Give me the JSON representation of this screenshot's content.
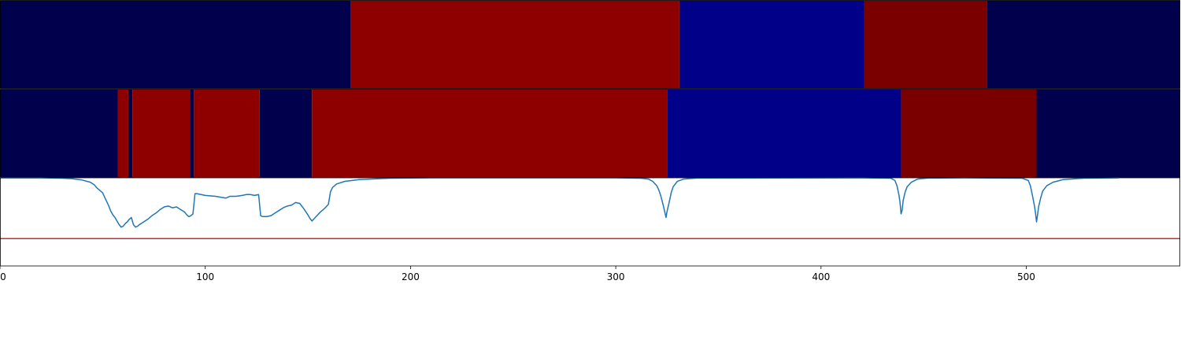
{
  "chart_data": [
    {
      "type": "heatmap",
      "xlim": [
        0,
        575
      ],
      "segments": [
        {
          "start": 0,
          "end": 171,
          "color": "#00004c"
        },
        {
          "start": 171,
          "end": 331,
          "color": "#8e0000"
        },
        {
          "start": 331,
          "end": 421,
          "color": "#000088"
        },
        {
          "start": 421,
          "end": 481,
          "color": "#7a0000"
        },
        {
          "start": 481,
          "end": 575,
          "color": "#00004c"
        }
      ]
    },
    {
      "type": "heatmap",
      "xlim": [
        0,
        575
      ],
      "segments": [
        {
          "start": 0,
          "end": 57.5,
          "color": "#00004c"
        },
        {
          "start": 57.5,
          "end": 62.5,
          "color": "#8e0000"
        },
        {
          "start": 62.5,
          "end": 64.5,
          "color": "#00004c"
        },
        {
          "start": 64.5,
          "end": 92.5,
          "color": "#8e0000"
        },
        {
          "start": 92.5,
          "end": 94.5,
          "color": "#00004c"
        },
        {
          "start": 94.5,
          "end": 126.5,
          "color": "#8e0000"
        },
        {
          "start": 126.5,
          "end": 152,
          "color": "#00004c"
        },
        {
          "start": 152,
          "end": 325,
          "color": "#8e0000"
        },
        {
          "start": 325,
          "end": 439,
          "color": "#000088"
        },
        {
          "start": 439,
          "end": 505,
          "color": "#7a0000"
        },
        {
          "start": 505,
          "end": 575,
          "color": "#00004c"
        }
      ]
    },
    {
      "type": "line",
      "xlim": [
        0,
        575
      ],
      "ylim": [
        0,
        1
      ],
      "xticks": [
        0,
        100,
        200,
        300,
        400,
        500
      ],
      "threshold": {
        "value": 0.31,
        "color": "#d62728"
      },
      "series": [
        {
          "color": "#1f77b4",
          "points": [
            [
              0,
              1.0
            ],
            [
              20,
              1.0
            ],
            [
              30,
              0.995
            ],
            [
              35,
              0.99
            ],
            [
              40,
              0.975
            ],
            [
              44,
              0.95
            ],
            [
              46,
              0.92
            ],
            [
              47,
              0.89
            ],
            [
              48,
              0.87
            ],
            [
              49,
              0.85
            ],
            [
              50,
              0.83
            ],
            [
              51,
              0.78
            ],
            [
              52,
              0.73
            ],
            [
              53,
              0.68
            ],
            [
              54,
              0.62
            ],
            [
              55,
              0.58
            ],
            [
              56,
              0.55
            ],
            [
              57,
              0.51
            ],
            [
              58,
              0.47
            ],
            [
              59,
              0.44
            ],
            [
              60,
              0.45
            ],
            [
              61,
              0.48
            ],
            [
              62,
              0.5
            ],
            [
              63,
              0.53
            ],
            [
              64,
              0.55
            ],
            [
              65,
              0.47
            ],
            [
              66,
              0.44
            ],
            [
              67,
              0.45
            ],
            [
              68,
              0.47
            ],
            [
              70,
              0.5
            ],
            [
              72,
              0.53
            ],
            [
              74,
              0.57
            ],
            [
              76,
              0.6
            ],
            [
              78,
              0.64
            ],
            [
              80,
              0.67
            ],
            [
              82,
              0.68
            ],
            [
              84,
              0.66
            ],
            [
              86,
              0.67
            ],
            [
              88,
              0.64
            ],
            [
              90,
              0.61
            ],
            [
              91,
              0.58
            ],
            [
              92,
              0.56
            ],
            [
              93,
              0.57
            ],
            [
              94,
              0.59
            ],
            [
              95,
              0.82
            ],
            [
              96,
              0.82
            ],
            [
              98,
              0.81
            ],
            [
              100,
              0.8
            ],
            [
              105,
              0.79
            ],
            [
              110,
              0.77
            ],
            [
              112,
              0.79
            ],
            [
              115,
              0.79
            ],
            [
              118,
              0.8
            ],
            [
              120,
              0.81
            ],
            [
              122,
              0.81
            ],
            [
              124,
              0.8
            ],
            [
              126,
              0.81
            ],
            [
              127,
              0.57
            ],
            [
              128,
              0.56
            ],
            [
              130,
              0.56
            ],
            [
              132,
              0.57
            ],
            [
              134,
              0.6
            ],
            [
              136,
              0.63
            ],
            [
              138,
              0.66
            ],
            [
              140,
              0.68
            ],
            [
              142,
              0.69
            ],
            [
              144,
              0.72
            ],
            [
              146,
              0.71
            ],
            [
              148,
              0.65
            ],
            [
              150,
              0.58
            ],
            [
              151,
              0.54
            ],
            [
              152,
              0.51
            ],
            [
              154,
              0.56
            ],
            [
              156,
              0.61
            ],
            [
              158,
              0.65
            ],
            [
              160,
              0.7
            ],
            [
              161,
              0.84
            ],
            [
              162,
              0.89
            ],
            [
              164,
              0.93
            ],
            [
              168,
              0.96
            ],
            [
              175,
              0.98
            ],
            [
              190,
              0.995
            ],
            [
              210,
              1.0
            ],
            [
              300,
              1.0
            ],
            [
              312,
              0.995
            ],
            [
              316,
              0.985
            ],
            [
              318,
              0.96
            ],
            [
              320,
              0.91
            ],
            [
              321,
              0.86
            ],
            [
              322,
              0.79
            ],
            [
              323,
              0.7
            ],
            [
              324,
              0.6
            ],
            [
              324.5,
              0.55
            ],
            [
              325,
              0.62
            ],
            [
              326,
              0.72
            ],
            [
              327,
              0.83
            ],
            [
              328,
              0.9
            ],
            [
              330,
              0.96
            ],
            [
              333,
              0.985
            ],
            [
              340,
              0.998
            ],
            [
              420,
              1.0
            ],
            [
              434,
              0.995
            ],
            [
              436,
              0.97
            ],
            [
              437,
              0.91
            ],
            [
              438,
              0.8
            ],
            [
              438.5,
              0.72
            ],
            [
              439,
              0.59
            ],
            [
              439.5,
              0.63
            ],
            [
              440,
              0.74
            ],
            [
              441,
              0.84
            ],
            [
              442,
              0.9
            ],
            [
              444,
              0.95
            ],
            [
              447,
              0.985
            ],
            [
              452,
              0.997
            ],
            [
              470,
              1.0
            ],
            [
              498,
              0.995
            ],
            [
              501,
              0.97
            ],
            [
              502,
              0.91
            ],
            [
              503,
              0.8
            ],
            [
              504,
              0.68
            ],
            [
              504.5,
              0.6
            ],
            [
              505,
              0.5
            ],
            [
              505.5,
              0.58
            ],
            [
              506,
              0.67
            ],
            [
              507,
              0.77
            ],
            [
              508,
              0.85
            ],
            [
              510,
              0.91
            ],
            [
              513,
              0.95
            ],
            [
              518,
              0.98
            ],
            [
              528,
              0.995
            ],
            [
              545,
              1.0
            ]
          ]
        }
      ]
    }
  ]
}
